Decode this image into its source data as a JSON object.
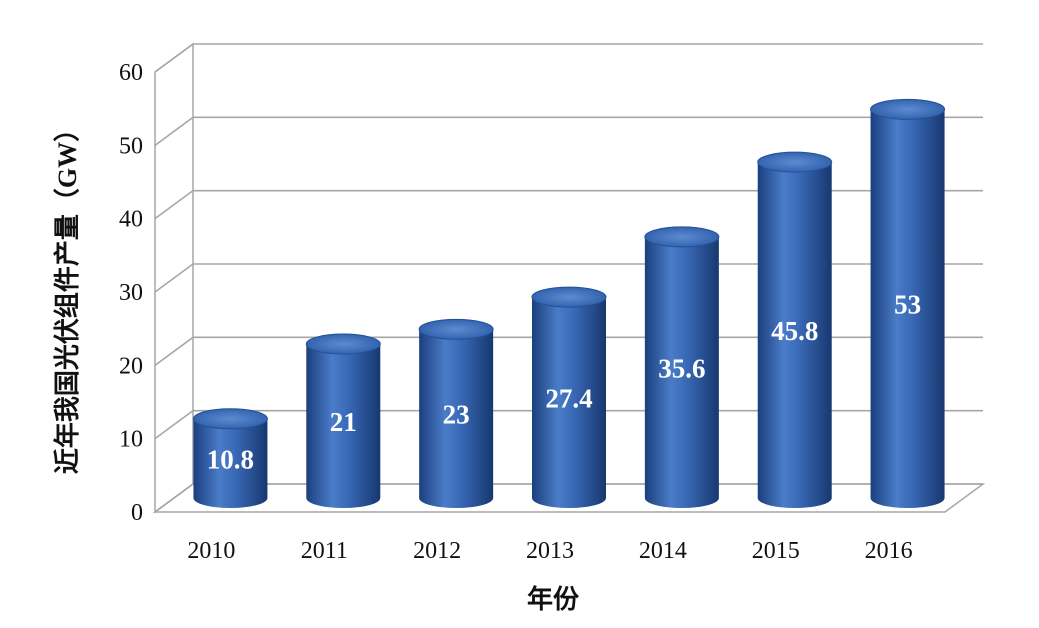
{
  "chart_data": {
    "type": "bar",
    "categories": [
      "2010",
      "2011",
      "2012",
      "2013",
      "2014",
      "2015",
      "2016"
    ],
    "values": [
      10.8,
      21,
      23,
      27.4,
      35.6,
      45.8,
      53
    ],
    "data_labels": [
      "10.8",
      "21",
      "23",
      "27.4",
      "35.6",
      "45.8",
      "53"
    ],
    "xlabel": "年份",
    "ylabel": "近年我国光伏组件产量（GW）",
    "ylim": [
      0,
      60
    ],
    "yticks": [
      0,
      10,
      20,
      30,
      40,
      50,
      60
    ],
    "grid": true,
    "style": "3d-cylinder",
    "colors": {
      "bar": "#2f62ad",
      "bar_dark": "#1b3f7e",
      "bar_light": "#6b97d8",
      "grid": "#a6a6a6"
    }
  }
}
